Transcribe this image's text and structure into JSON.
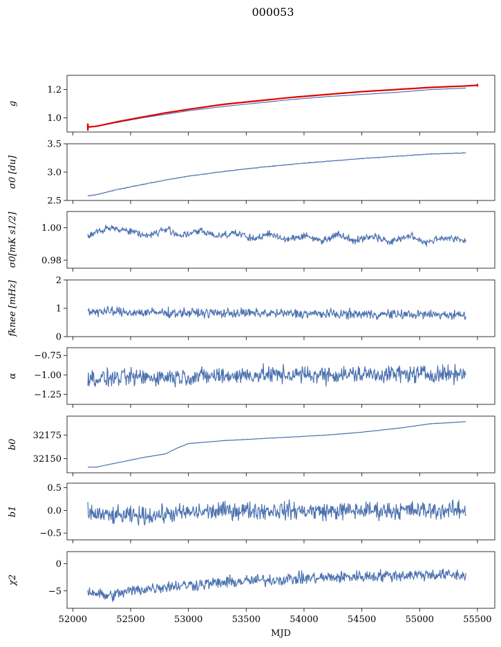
{
  "title": "000053",
  "chart_data": [
    {
      "type": "line",
      "ylabel": "g",
      "ylim": [
        0.9,
        1.3
      ],
      "yticks": [
        1.0,
        1.2
      ],
      "ytick_labels": [
        "1.0",
        "1.2"
      ],
      "xlim": [
        51950,
        55650
      ],
      "series": [
        {
          "color": "#4c72b0",
          "noise": 0,
          "x": [
            52130,
            52200,
            52400,
            52600,
            52800,
            53000,
            53300,
            53600,
            53900,
            54200,
            54500,
            54800,
            55100,
            55400
          ],
          "y": [
            0.935,
            0.94,
            0.97,
            1.0,
            1.025,
            1.05,
            1.08,
            1.105,
            1.13,
            1.15,
            1.165,
            1.18,
            1.2,
            1.21
          ]
        },
        {
          "color": "#e00000",
          "noise": 0,
          "x": [
            52130,
            52200,
            52400,
            52600,
            52800,
            53000,
            53300,
            53600,
            53900,
            54200,
            54500,
            54800,
            55100,
            55400,
            55500
          ],
          "y": [
            0.935,
            0.94,
            0.975,
            1.005,
            1.035,
            1.06,
            1.095,
            1.12,
            1.145,
            1.165,
            1.185,
            1.2,
            1.215,
            1.225,
            1.23
          ]
        }
      ]
    },
    {
      "type": "line",
      "ylabel": "σ0 [du]",
      "ylim": [
        2.5,
        3.5
      ],
      "yticks": [
        2.5,
        3.0,
        3.5
      ],
      "ytick_labels": [
        "2.5",
        "3.0",
        "3.5"
      ],
      "xlim": [
        51950,
        55650
      ],
      "series": [
        {
          "color": "#4c72b0",
          "noise": 0.004,
          "x": [
            52130,
            52200,
            52400,
            52600,
            52800,
            53000,
            53300,
            53600,
            53900,
            54200,
            54500,
            54800,
            55100,
            55400
          ],
          "y": [
            2.58,
            2.6,
            2.7,
            2.78,
            2.86,
            2.93,
            3.01,
            3.08,
            3.14,
            3.19,
            3.24,
            3.28,
            3.32,
            3.34
          ]
        }
      ]
    },
    {
      "type": "line",
      "ylabel": "σ0[mK s1/2]",
      "ylim": [
        0.975,
        1.01
      ],
      "yticks": [
        0.98,
        1.0
      ],
      "ytick_labels": [
        "0.98",
        "1.00"
      ],
      "xlim": [
        51950,
        55650
      ],
      "series": [
        {
          "color": "#4c72b0",
          "noise": 0.0016,
          "x": [
            52130,
            52200,
            52350,
            52500,
            52650,
            52800,
            52950,
            53100,
            53250,
            53400,
            53550,
            53700,
            53850,
            54000,
            54150,
            54300,
            54450,
            54600,
            54750,
            54900,
            55050,
            55200,
            55400
          ],
          "y": [
            0.995,
            0.997,
            1.0,
            0.998,
            0.995,
            0.999,
            0.995,
            0.998,
            0.995,
            0.997,
            0.993,
            0.996,
            0.993,
            0.995,
            0.992,
            0.996,
            0.992,
            0.995,
            0.991,
            0.995,
            0.991,
            0.994,
            0.992
          ]
        }
      ]
    },
    {
      "type": "line",
      "ylabel": "fknee [mHz]",
      "ylim": [
        0,
        2
      ],
      "yticks": [
        0,
        1,
        2
      ],
      "ytick_labels": [
        "0",
        "1",
        "2"
      ],
      "xlim": [
        51950,
        55650
      ],
      "series": [
        {
          "color": "#4c72b0",
          "noise": 0.12,
          "x": [
            52130,
            52300,
            52600,
            53000,
            53400,
            53800,
            54200,
            54600,
            55000,
            55400
          ],
          "y": [
            0.9,
            0.88,
            0.85,
            0.84,
            0.83,
            0.82,
            0.8,
            0.79,
            0.78,
            0.77
          ]
        }
      ]
    },
    {
      "type": "line",
      "ylabel": "α",
      "ylim": [
        -1.38,
        -0.65
      ],
      "yticks": [
        -1.25,
        -1.0,
        -0.75
      ],
      "ytick_labels": [
        "−1.25",
        "−1.00",
        "−0.75"
      ],
      "xlim": [
        51950,
        55650
      ],
      "series": [
        {
          "color": "#4c72b0",
          "noise": 0.08,
          "x": [
            52130,
            52600,
            53100,
            53600,
            54100,
            54600,
            55100,
            55400
          ],
          "y": [
            -1.05,
            -1.03,
            -1.02,
            -1.0,
            -1.0,
            -0.99,
            -0.99,
            -0.98
          ]
        }
      ]
    },
    {
      "type": "line",
      "ylabel": "b0",
      "ylim": [
        32135,
        32195
      ],
      "yticks": [
        32150,
        32175
      ],
      "ytick_labels": [
        "32150",
        "32175"
      ],
      "xlim": [
        51950,
        55650
      ],
      "series": [
        {
          "color": "#4c72b0",
          "noise": 0.15,
          "x": [
            52130,
            52200,
            52400,
            52600,
            52800,
            52900,
            53000,
            53300,
            53600,
            53900,
            54200,
            54500,
            54800,
            55100,
            55400
          ],
          "y": [
            32141,
            32141,
            32146,
            32151,
            32155,
            32161,
            32166,
            32169,
            32171,
            32173,
            32175,
            32178,
            32182,
            32187,
            32189
          ]
        }
      ]
    },
    {
      "type": "line",
      "ylabel": "b1",
      "ylim": [
        -0.65,
        0.6
      ],
      "yticks": [
        -0.5,
        0.0,
        0.5
      ],
      "ytick_labels": [
        "−0.5",
        "0.0",
        "0.5"
      ],
      "xlim": [
        51950,
        55650
      ],
      "series": [
        {
          "color": "#4c72b0",
          "noise": 0.14,
          "x": [
            52130,
            52300,
            52600,
            53000,
            53400,
            53800,
            54200,
            54600,
            55000,
            55400
          ],
          "y": [
            -0.05,
            -0.12,
            -0.12,
            -0.05,
            0.0,
            0.0,
            -0.02,
            0.0,
            0.0,
            0.0
          ]
        }
      ]
    },
    {
      "type": "line",
      "ylabel": "χ2",
      "ylim": [
        -8.2,
        2.2
      ],
      "yticks": [
        -5,
        0
      ],
      "ytick_labels": [
        "−5",
        "0"
      ],
      "xlim": [
        51950,
        55650
      ],
      "xticks": [
        52000,
        52500,
        53000,
        53500,
        54000,
        54500,
        55000,
        55500
      ],
      "xtick_labels": [
        "52000",
        "52500",
        "53000",
        "53500",
        "54000",
        "54500",
        "55000",
        "55500"
      ],
      "xlabel": "MJD",
      "series": [
        {
          "color": "#4c72b0",
          "noise": 0.8,
          "x": [
            52130,
            52300,
            52500,
            52800,
            53100,
            53500,
            53900,
            54300,
            54700,
            55100,
            55400
          ],
          "y": [
            -5.0,
            -6.0,
            -5.0,
            -4.2,
            -3.8,
            -3.2,
            -2.8,
            -2.5,
            -2.2,
            -2.0,
            -2.2
          ]
        }
      ]
    }
  ]
}
